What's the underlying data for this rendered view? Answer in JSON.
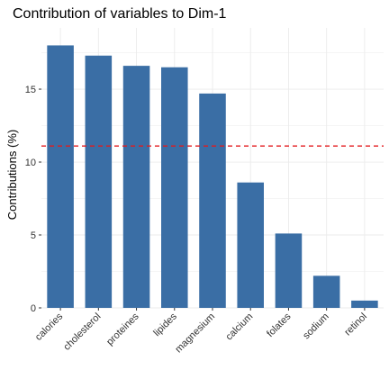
{
  "chart_data": {
    "type": "bar",
    "title": "Contribution of variables to Dim-1",
    "xlabel": "",
    "ylabel": "Contributions (%)",
    "categories": [
      "calories",
      "cholesterol",
      "proteines",
      "lipides",
      "magnesium",
      "calcium",
      "folates",
      "sodium",
      "retinol"
    ],
    "values": [
      18.0,
      17.3,
      16.6,
      16.5,
      14.7,
      8.6,
      5.1,
      2.2,
      0.5
    ],
    "ylim": [
      0,
      19.2
    ],
    "yticks": [
      0,
      5,
      10,
      15
    ],
    "reference_line": {
      "value": 11.1,
      "color": "#e31a1c",
      "style": "dashed"
    },
    "bar_color": "#3a6ea5",
    "grid": true,
    "background": "#ffffff",
    "grid_color": "#ebebeb"
  }
}
